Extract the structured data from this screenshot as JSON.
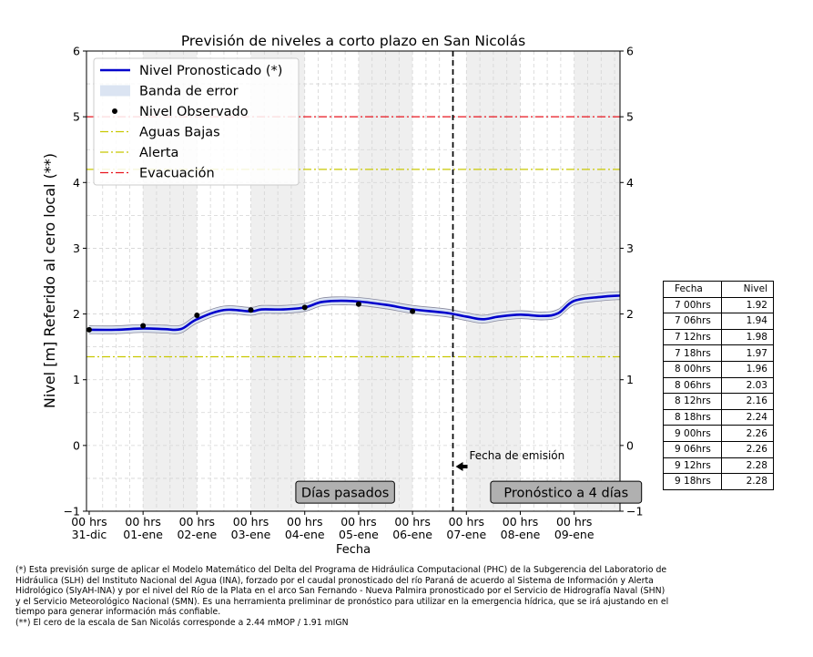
{
  "chart_data": {
    "type": "line",
    "title": "Previsión de niveles a corto plazo en San Nicolás",
    "xlabel": "Fecha",
    "ylabel": "Nivel [m] Referido al cero local (**)",
    "ylim": [
      -1,
      6
    ],
    "y_ticks": [
      "−1",
      "0",
      "1",
      "2",
      "3",
      "4",
      "5",
      "6"
    ],
    "x_range_days": [
      -0.05,
      9.85
    ],
    "x_ticks": [
      {
        "top": "00 hrs",
        "bottom": "31-dic"
      },
      {
        "top": "00 hrs",
        "bottom": "01-ene"
      },
      {
        "top": "00 hrs",
        "bottom": "02-ene"
      },
      {
        "top": "00 hrs",
        "bottom": "03-ene"
      },
      {
        "top": "00 hrs",
        "bottom": "04-ene"
      },
      {
        "top": "00 hrs",
        "bottom": "05-ene"
      },
      {
        "top": "00 hrs",
        "bottom": "06-ene"
      },
      {
        "top": "00 hrs",
        "bottom": "07-ene"
      },
      {
        "top": "00 hrs",
        "bottom": "08-ene"
      },
      {
        "top": "00 hrs",
        "bottom": "09-ene"
      }
    ],
    "grid": true,
    "legend_position": "top-left",
    "legend": [
      {
        "label": "Nivel Pronosticado (*)",
        "kind": "line",
        "color": "#0000cc"
      },
      {
        "label": "Banda de error",
        "kind": "band",
        "color": "#dbe4f2"
      },
      {
        "label": "Nivel Observado",
        "kind": "dot",
        "color": "#000000"
      },
      {
        "label": "Aguas Bajas",
        "kind": "dashdot",
        "color": "#c8c800"
      },
      {
        "label": "Alerta",
        "kind": "dashdot",
        "color": "#c8c800"
      },
      {
        "label": "Evacuación",
        "kind": "dashdot",
        "color": "#e8141e"
      }
    ],
    "series": [
      {
        "name": "Nivel Pronosticado (*)",
        "color": "#0000cc",
        "x": [
          0,
          0.5,
          1,
          1.4,
          1.7,
          2,
          2.5,
          3,
          3.2,
          3.6,
          4,
          4.3,
          4.6,
          5,
          5.5,
          6,
          6.6,
          7,
          7.3,
          7.6,
          8,
          8.4,
          8.7,
          9,
          9.5,
          9.85
        ],
        "y": [
          1.76,
          1.76,
          1.78,
          1.77,
          1.77,
          1.92,
          2.06,
          2.04,
          2.07,
          2.07,
          2.1,
          2.18,
          2.2,
          2.19,
          2.14,
          2.07,
          2.02,
          1.96,
          1.92,
          1.96,
          1.99,
          1.97,
          2.01,
          2.2,
          2.26,
          2.28
        ]
      }
    ],
    "error_band": {
      "name": "Banda de error",
      "color": "#dbe4f2",
      "half_width": 0.06
    },
    "observed": {
      "name": "Nivel Observado",
      "x": [
        0,
        1,
        2,
        3,
        4,
        5,
        6
      ],
      "y": [
        1.76,
        1.82,
        1.98,
        2.06,
        2.1,
        2.15,
        2.04
      ]
    },
    "reference_lines": [
      {
        "name": "Aguas Bajas",
        "y": 1.35,
        "color": "#c8c800"
      },
      {
        "name": "Alerta",
        "y": 4.2,
        "color": "#c8c800"
      },
      {
        "name": "Evacuación",
        "y": 5.0,
        "color": "#e8141e"
      }
    ],
    "shaded_days": [
      [
        1,
        2
      ],
      [
        3,
        4
      ],
      [
        5,
        6
      ],
      [
        7,
        8
      ],
      [
        9,
        9.85
      ]
    ],
    "emission_line_x": 6.75,
    "annotations": {
      "emission": "Fecha de emisión",
      "past": "Días pasados",
      "forecast": "Pronóstico a 4 días"
    }
  },
  "side_table": {
    "headers": [
      "Fecha",
      "Nivel"
    ],
    "rows": [
      [
        "7 00hrs",
        "1.92"
      ],
      [
        "7 06hrs",
        "1.94"
      ],
      [
        "7 12hrs",
        "1.98"
      ],
      [
        "7 18hrs",
        "1.97"
      ],
      [
        "8 00hrs",
        "1.96"
      ],
      [
        "8 06hrs",
        "2.03"
      ],
      [
        "8 12hrs",
        "2.16"
      ],
      [
        "8 18hrs",
        "2.24"
      ],
      [
        "9 00hrs",
        "2.26"
      ],
      [
        "9 06hrs",
        "2.26"
      ],
      [
        "9 12hrs",
        "2.28"
      ],
      [
        "9 18hrs",
        "2.28"
      ]
    ]
  },
  "footnotes": [
    "(*) Esta previsión surge de aplicar el Modelo Matemático del Delta del Programa de Hidráulica Computacional (PHC) de la Subgerencia del Laboratorio de Hidráulica (SLH) del Instituto Nacional del Agua (INA), forzado por el caudal pronosticado del río Paraná de acuerdo al Sistema de Información y Alerta Hidrológico (SIyAH-INA) y por el nivel del Río de la Plata en el arco San Fernando - Nueva Palmira pronosticado por el Servicio de Hidrografía Naval (SHN) y el Servicio Meteorológico Nacional (SMN). Es una herramienta preliminar de pronóstico para utilizar en la emergencia hídrica, que se irá ajustando en el tiempo para generar información más confiable.",
    "(**) El cero de la escala de San Nicolás corresponde a 2.44 mMOP / 1.91 mIGN"
  ]
}
